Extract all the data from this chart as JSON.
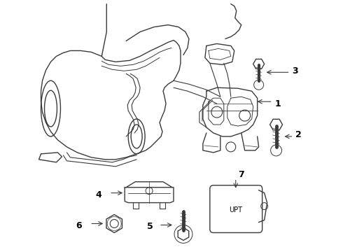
{
  "bg_color": "#ffffff",
  "lc": "#3a3a3a",
  "lw": 1.0,
  "figsize": [
    4.9,
    3.6
  ],
  "dpi": 100,
  "xlim": [
    0,
    490
  ],
  "ylim": [
    0,
    360
  ]
}
